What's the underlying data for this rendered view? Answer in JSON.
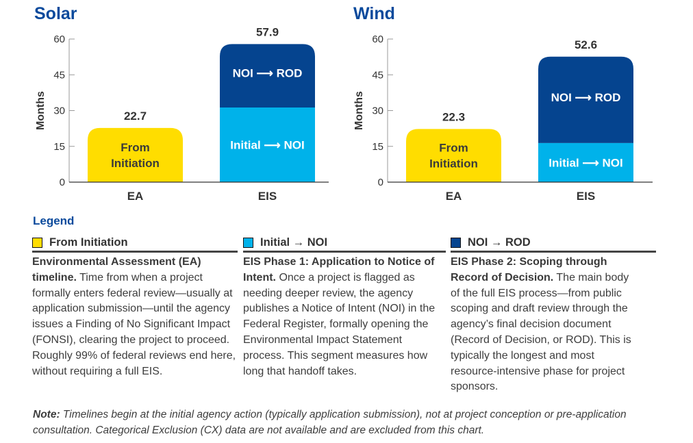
{
  "chart_data": [
    {
      "type": "bar",
      "stacked": true,
      "title": "Solar",
      "ylabel": "Months",
      "ylim": [
        0,
        60
      ],
      "yticks": [
        0,
        15,
        30,
        45,
        60
      ],
      "categories": [
        "EA",
        "EIS"
      ],
      "bars": [
        {
          "category": "EA",
          "total_label": "22.7",
          "segments": [
            {
              "series": "From Initiation",
              "value": 22.7,
              "label": [
                "From",
                "Initiation"
              ]
            }
          ]
        },
        {
          "category": "EIS",
          "total_label": "57.9",
          "segments": [
            {
              "series": "Initial → NOI",
              "value": 31.3,
              "label": [
                "Initial ⟶ NOI"
              ]
            },
            {
              "series": "NOI → ROD",
              "value": 26.6,
              "label": [
                "NOI ⟶ ROD"
              ]
            }
          ]
        }
      ]
    },
    {
      "type": "bar",
      "stacked": true,
      "title": "Wind",
      "ylabel": "Months",
      "ylim": [
        0,
        60
      ],
      "yticks": [
        0,
        15,
        30,
        45,
        60
      ],
      "categories": [
        "EA",
        "EIS"
      ],
      "bars": [
        {
          "category": "EA",
          "total_label": "22.3",
          "segments": [
            {
              "series": "From Initiation",
              "value": 22.3,
              "label": [
                "From",
                "Initiation"
              ]
            }
          ]
        },
        {
          "category": "EIS",
          "total_label": "52.6",
          "segments": [
            {
              "series": "Initial → NOI",
              "value": 16.4,
              "label": [
                "Initial ⟶ NOI"
              ]
            },
            {
              "series": "NOI → ROD",
              "value": 36.2,
              "label": [
                "NOI ⟶ ROD"
              ]
            }
          ]
        }
      ]
    }
  ],
  "colors": {
    "From Initiation": "#ffdd00",
    "Initial → NOI": "#00b2ea",
    "NOI → ROD": "#05448f",
    "title": "#0b4a9c"
  },
  "legend": {
    "title": "Legend",
    "items": [
      {
        "label": "From Initiation",
        "color": "#ffdd00",
        "bold": "Environmental Assessment (EA) timeline.",
        "text": " Time from when a project formally enters federal review—usually at application submission—until the agency issues a Finding of No Significant Impact (FONSI), clearing the project to proceed. Roughly 99% of federal reviews end here, without requiring a full EIS."
      },
      {
        "label": "Initial → NOI",
        "color": "#00b2ea",
        "bold": "EIS Phase 1: Application to Notice of Intent.",
        "text": " Once a project is flagged as needing deeper review, the agency publishes a Notice of Intent (NOI) in the Federal Register, formally opening the Environmental Impact Statement process. This segment measures how long that handoff takes."
      },
      {
        "label": "NOI → ROD",
        "color": "#05448f",
        "bold": "EIS Phase 2: Scoping through Record of Decision.",
        "text": " The main body of the full EIS process—from public scoping and draft review through the agency’s final decision document (Record of Decision, or ROD). This is typically the longest and most resource-intensive phase for project sponsors."
      }
    ]
  },
  "note": {
    "label": "Note:",
    "text": " Timelines begin at the initial agency action (typically application submission), not at project conception or pre-application consultation. Categorical Exclusion (CX) data are not available and are excluded from this chart."
  }
}
